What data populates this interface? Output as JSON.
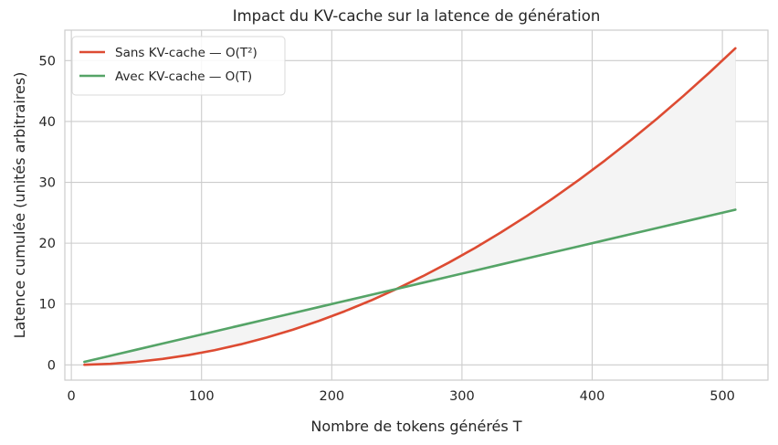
{
  "chart_data": {
    "type": "line",
    "title": "Impact du KV-cache sur la latence de génération",
    "xlabel": "Nombre de tokens générés T",
    "ylabel": "Latence cumulée (unités arbitraires)",
    "xlim": [
      -5,
      535
    ],
    "ylim": [
      -2.5,
      55
    ],
    "xticks": [
      0,
      100,
      200,
      300,
      400,
      500
    ],
    "yticks": [
      0,
      10,
      20,
      30,
      40,
      50
    ],
    "grid": true,
    "legend_position": "top-left",
    "x": [
      10,
      30,
      50,
      70,
      90,
      110,
      130,
      150,
      170,
      190,
      210,
      230,
      250,
      270,
      290,
      310,
      330,
      350,
      370,
      390,
      410,
      430,
      450,
      470,
      490,
      510
    ],
    "series": [
      {
        "name": "Sans KV-cache — O(T²)",
        "color": "#dd4b32",
        "values": [
          0.02,
          0.18,
          0.5,
          0.98,
          1.62,
          2.42,
          3.38,
          4.5,
          5.78,
          7.22,
          8.82,
          10.58,
          12.5,
          14.58,
          16.82,
          19.22,
          21.78,
          24.5,
          27.38,
          30.42,
          33.62,
          36.98,
          40.5,
          44.18,
          48.02,
          52.02
        ]
      },
      {
        "name": "Avec KV-cache — O(T)",
        "color": "#55a467",
        "values": [
          0.5,
          1.5,
          2.5,
          3.5,
          4.5,
          5.5,
          6.5,
          7.5,
          8.5,
          9.5,
          10.5,
          11.5,
          12.5,
          13.5,
          14.5,
          15.5,
          16.5,
          17.5,
          18.5,
          19.5,
          20.5,
          21.5,
          22.5,
          23.5,
          24.5,
          25.5
        ]
      }
    ],
    "fill_between": {
      "color": "#f4f4f4",
      "stroke": "#e6e6e6"
    }
  }
}
